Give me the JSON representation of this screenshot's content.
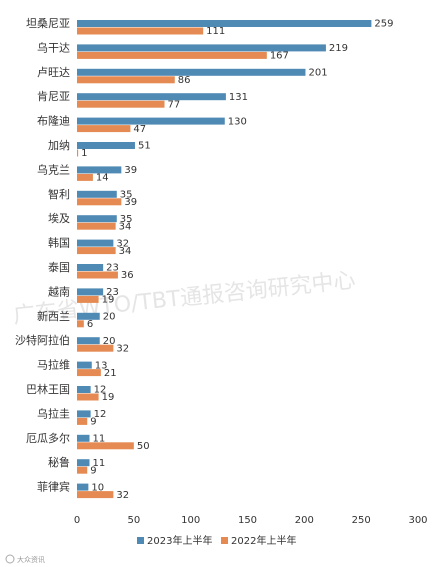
{
  "chart_data": {
    "type": "bar",
    "orientation": "horizontal",
    "categories": [
      "坦桑尼亚",
      "乌干达",
      "卢旺达",
      "肯尼亚",
      "布隆迪",
      "加纳",
      "乌克兰",
      "智利",
      "埃及",
      "韩国",
      "泰国",
      "越南",
      "新西兰",
      "沙特阿拉伯",
      "马拉维",
      "巴林王国",
      "乌拉圭",
      "厄瓜多尔",
      "秘鲁",
      "菲律宾"
    ],
    "series": [
      {
        "name": "2023年上半年",
        "color": "#4f8ab5",
        "values": [
          259,
          219,
          201,
          131,
          130,
          51,
          39,
          35,
          35,
          32,
          23,
          23,
          20,
          20,
          13,
          12,
          12,
          11,
          11,
          10
        ]
      },
      {
        "name": "2022年上半年",
        "color": "#e58a52",
        "values": [
          111,
          167,
          86,
          77,
          47,
          1,
          14,
          39,
          34,
          34,
          36,
          19,
          6,
          32,
          21,
          19,
          9,
          50,
          9,
          32
        ]
      }
    ],
    "xlim": [
      0,
      300
    ],
    "xticks": [
      "0",
      "50",
      "100",
      "150",
      "200",
      "250",
      "300"
    ],
    "legend_position": "bottom",
    "grid": false
  },
  "watermark": "广东省WTO/TBT通报咨询研究中心",
  "logo_text": "大众资讯"
}
